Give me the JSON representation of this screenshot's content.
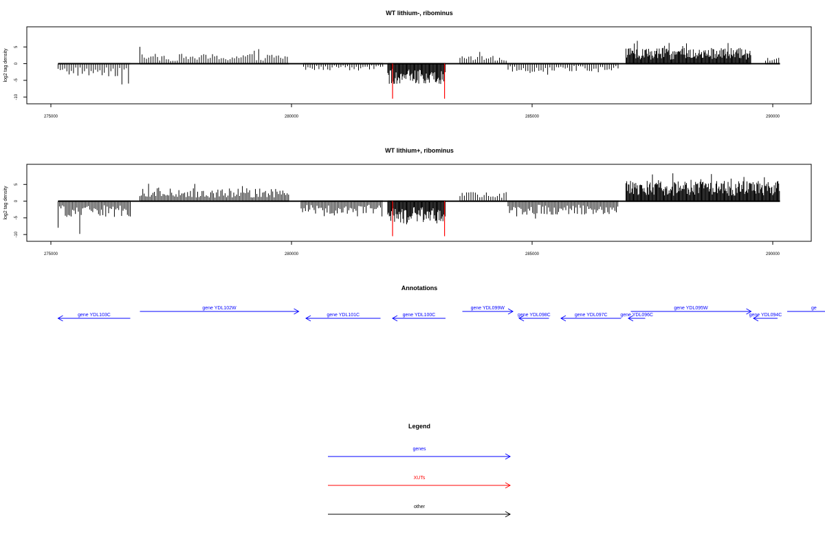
{
  "chart_data": [
    {
      "type": "bar",
      "title": "WT lithium-, ribominus",
      "ylabel": "log2 tag density",
      "xlabel": "",
      "xlim": [
        274500,
        290800
      ],
      "ylim": [
        -11,
        10
      ],
      "x_ticks": [
        275000,
        280000,
        285000,
        290000
      ],
      "y_ticks": [
        -10,
        -5,
        0,
        5
      ],
      "grid": false,
      "regions": [
        {
          "strand": "minus",
          "start": 275150,
          "end": 276650,
          "level": 2.8,
          "max": 8.5,
          "density": "sparse",
          "color": "#000000"
        },
        {
          "strand": "plus",
          "start": 276850,
          "end": 279950,
          "level": 2.2,
          "max": 5.8,
          "density": "sparse",
          "color": "#000000"
        },
        {
          "strand": "minus",
          "start": 280250,
          "end": 281900,
          "level": 1.6,
          "max": 3.5,
          "density": "sparse",
          "color": "#000000"
        },
        {
          "strand": "minus",
          "start": 282000,
          "end": 283200,
          "level": 4.5,
          "max": 7.8,
          "density": "dense",
          "color": "#000000"
        },
        {
          "strand": "plus",
          "start": 283500,
          "end": 284500,
          "level": 1.8,
          "max": 4.0,
          "density": "sparse",
          "color": "#000000"
        },
        {
          "strand": "minus",
          "start": 284500,
          "end": 286800,
          "level": 1.8,
          "max": 4.0,
          "density": "sparse",
          "color": "#000000"
        },
        {
          "strand": "plus",
          "start": 286950,
          "end": 289550,
          "level": 3.5,
          "max": 7.5,
          "density": "dense",
          "color": "#000000"
        },
        {
          "strand": "plus",
          "start": 289850,
          "end": 290150,
          "level": 2.0,
          "max": 5.0,
          "density": "sparse",
          "color": "#000000"
        }
      ],
      "spikes": [
        {
          "x": 282100,
          "y": -10.5,
          "color": "#ff0000"
        },
        {
          "x": 283180,
          "y": -10.5,
          "color": "#ff0000"
        }
      ]
    },
    {
      "type": "bar",
      "title": "WT lithium+, ribominus",
      "ylabel": "log2 tag density",
      "xlabel": "",
      "xlim": [
        274500,
        290800
      ],
      "ylim": [
        -11,
        10
      ],
      "x_ticks": [
        275000,
        280000,
        285000,
        290000
      ],
      "y_ticks": [
        -10,
        -5,
        0,
        5
      ],
      "grid": false,
      "regions": [
        {
          "strand": "minus",
          "start": 275150,
          "end": 276650,
          "level": 3.5,
          "max": 10.0,
          "density": "medium",
          "color": "#000000"
        },
        {
          "strand": "plus",
          "start": 276850,
          "end": 279950,
          "level": 3.0,
          "max": 5.8,
          "density": "medium",
          "color": "#000000"
        },
        {
          "strand": "minus",
          "start": 280200,
          "end": 281900,
          "level": 2.8,
          "max": 5.2,
          "density": "medium",
          "color": "#000000"
        },
        {
          "strand": "minus",
          "start": 282000,
          "end": 283200,
          "level": 5.0,
          "max": 7.8,
          "density": "dense",
          "color": "#000000"
        },
        {
          "strand": "plus",
          "start": 283500,
          "end": 284500,
          "level": 2.0,
          "max": 4.0,
          "density": "sparse",
          "color": "#000000"
        },
        {
          "strand": "minus",
          "start": 284500,
          "end": 286800,
          "level": 3.0,
          "max": 5.5,
          "density": "medium",
          "color": "#000000"
        },
        {
          "strand": "plus",
          "start": 286950,
          "end": 290150,
          "level": 4.5,
          "max": 9.0,
          "density": "dense",
          "color": "#000000"
        }
      ],
      "spikes": [
        {
          "x": 282100,
          "y": -10.5,
          "color": "#ff0000"
        },
        {
          "x": 283180,
          "y": -10.5,
          "color": "#ff0000"
        }
      ]
    }
  ],
  "annotations": {
    "title": "Annotations",
    "color": "#0000ff",
    "genes": [
      {
        "label": "gene YDL103C",
        "start": 275150,
        "end": 276650,
        "strand": "-"
      },
      {
        "label": "gene YDL102W",
        "start": 276850,
        "end": 280150,
        "strand": "+"
      },
      {
        "label": "gene YDL101C",
        "start": 280300,
        "end": 281850,
        "strand": "-"
      },
      {
        "label": "gene YDL100C",
        "start": 282100,
        "end": 283200,
        "strand": "-"
      },
      {
        "label": "gene YDL099W",
        "start": 283550,
        "end": 284600,
        "strand": "+"
      },
      {
        "label": "gene YDL098C",
        "start": 284730,
        "end": 285350,
        "strand": "-"
      },
      {
        "label": "gene YDL097C",
        "start": 285600,
        "end": 286850,
        "strand": "-"
      },
      {
        "label": "gene YDL096C",
        "start": 287000,
        "end": 287350,
        "strand": "-"
      },
      {
        "label": "gene YDL095W",
        "start": 287050,
        "end": 289550,
        "strand": "+"
      },
      {
        "label": "gene YDL094C",
        "start": 289600,
        "end": 290100,
        "strand": "-"
      },
      {
        "label": "ge",
        "start": 290300,
        "end": 291200,
        "strand": "+"
      }
    ]
  },
  "legend": {
    "title": "Legend",
    "items": [
      {
        "label": "genes",
        "color": "#0000ff"
      },
      {
        "label": "XUTs",
        "color": "#ff0000"
      },
      {
        "label": "other",
        "color": "#000000"
      }
    ]
  }
}
